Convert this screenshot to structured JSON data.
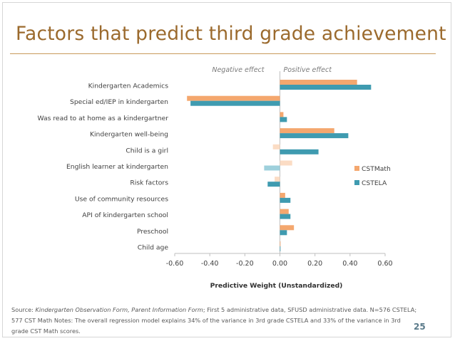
{
  "slide": {
    "title": "Factors that predict third grade achievement",
    "page_number": "25",
    "source_label": "Source:",
    "source_italic": "Kindergarten Observation Form, Parent Information Form",
    "source_rest": "; First 5 administrative data, SFUSD administrative data. N=576 CSTELA; 577 CST Math  Notes: The overall regression model explains 34% of the variance in 3rd grade CSTELA and 33% of the variance in 3rd grade CST Math scores."
  },
  "colors": {
    "cstmath": "#f4a76e",
    "cstela": "#3f9bb0",
    "cstmath_nonsig": "#fbdcc4",
    "cstela_nonsig": "#9ed0dc",
    "title": "#9b6a2d"
  },
  "chart_data": {
    "type": "bar",
    "orientation": "horizontal",
    "categories": [
      "Kindergarten Academics",
      "Special ed/IEP in kindergarten",
      "Was read to at home as a kindergartner",
      "Kindergarten well-being",
      "Child is a girl",
      "English learner at kindergarten",
      "Risk factors",
      "Use of community resources",
      "API of kindergarten school",
      "Preschool",
      "Child age"
    ],
    "series": [
      {
        "name": "CSTMath",
        "values": [
          0.44,
          -0.53,
          0.02,
          0.31,
          -0.04,
          0.07,
          -0.03,
          0.03,
          0.05,
          0.08,
          0.0
        ],
        "significant": [
          true,
          true,
          true,
          true,
          false,
          false,
          false,
          true,
          true,
          true,
          true
        ]
      },
      {
        "name": "CSTELA",
        "values": [
          0.52,
          -0.51,
          0.04,
          0.39,
          0.22,
          -0.09,
          -0.07,
          0.06,
          0.06,
          0.04,
          0.0
        ],
        "significant": [
          true,
          true,
          true,
          true,
          true,
          false,
          true,
          true,
          true,
          true,
          true
        ]
      }
    ],
    "xlim": [
      -0.6,
      0.6
    ],
    "ticks": [
      "-0.60",
      "-0.40",
      "-0.20",
      "0.00",
      "0.20",
      "0.40",
      "0.60"
    ],
    "tick_values": [
      -0.6,
      -0.4,
      -0.2,
      0.0,
      0.2,
      0.4,
      0.6
    ],
    "xlabel": "Predictive Weight (Unstandardized)",
    "annotations": {
      "negative": "Negative effect",
      "positive": "Positive effect"
    },
    "legend": [
      "CSTMath",
      "CSTELA"
    ],
    "legend_position": "right"
  }
}
